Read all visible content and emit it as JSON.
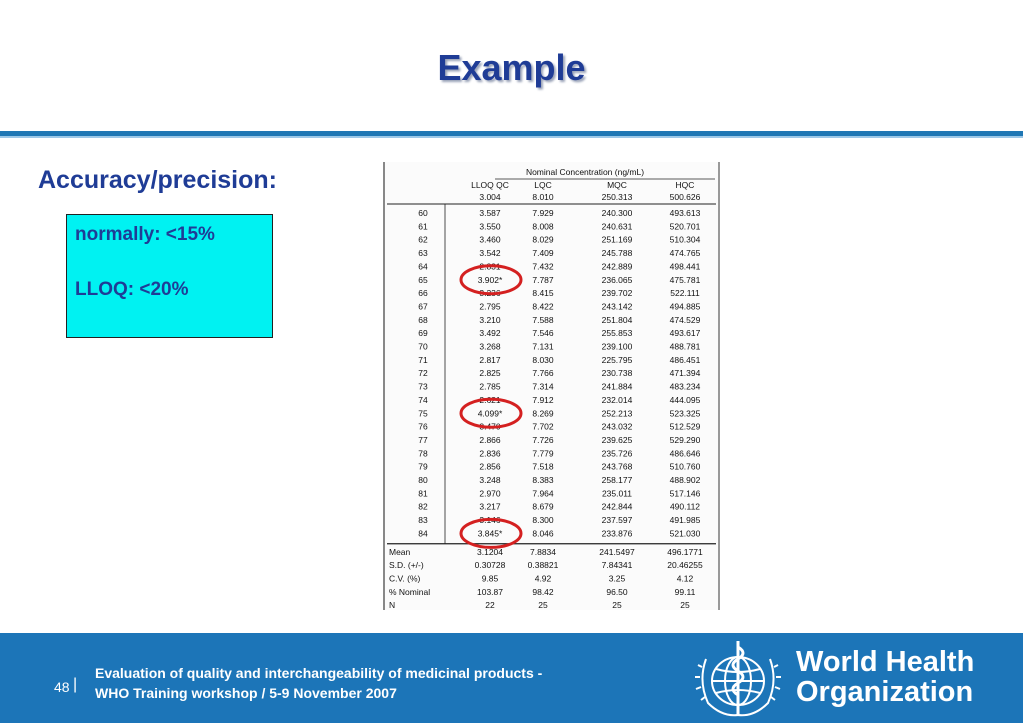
{
  "title": "Example",
  "subheading": "Accuracy/precision:",
  "note": {
    "line1": "normally: <15%",
    "line2": "LLOQ: <20%"
  },
  "table": {
    "header_top": "Nominal Concentration (ng/mL)",
    "columns": [
      "LLOQ QC",
      "LQC",
      "MQC",
      "HQC"
    ],
    "nominal": [
      "3.004",
      "8.010",
      "250.313",
      "500.626"
    ],
    "rows": [
      [
        "60",
        "3.587",
        "7.929",
        "240.300",
        "493.613"
      ],
      [
        "61",
        "3.550",
        "8.008",
        "240.631",
        "520.701"
      ],
      [
        "62",
        "3.460",
        "8.029",
        "251.169",
        "510.304"
      ],
      [
        "63",
        "3.542",
        "7.409",
        "245.788",
        "474.765"
      ],
      [
        "64",
        "2.831",
        "7.432",
        "242.889",
        "498.441"
      ],
      [
        "65",
        "3.902*",
        "7.787",
        "236.065",
        "475.781"
      ],
      [
        "66",
        "3.236",
        "8.415",
        "239.702",
        "522.111"
      ],
      [
        "67",
        "2.795",
        "8.422",
        "243.142",
        "494.885"
      ],
      [
        "68",
        "3.210",
        "7.588",
        "251.804",
        "474.529"
      ],
      [
        "69",
        "3.492",
        "7.546",
        "255.853",
        "493.617"
      ],
      [
        "70",
        "3.268",
        "7.131",
        "239.100",
        "488.781"
      ],
      [
        "71",
        "2.817",
        "8.030",
        "225.795",
        "486.451"
      ],
      [
        "72",
        "2.825",
        "7.766",
        "230.738",
        "471.394"
      ],
      [
        "73",
        "2.785",
        "7.314",
        "241.884",
        "483.234"
      ],
      [
        "74",
        "2.621",
        "7.912",
        "232.014",
        "444.095"
      ],
      [
        "75",
        "4.099*",
        "8.269",
        "252.213",
        "523.325"
      ],
      [
        "76",
        "3.470",
        "7.702",
        "243.032",
        "512.529"
      ],
      [
        "77",
        "2.866",
        "7.726",
        "239.625",
        "529.290"
      ],
      [
        "78",
        "2.836",
        "7.779",
        "235.726",
        "486.646"
      ],
      [
        "79",
        "2.856",
        "7.518",
        "243.768",
        "510.760"
      ],
      [
        "80",
        "3.248",
        "8.383",
        "258.177",
        "488.902"
      ],
      [
        "81",
        "2.970",
        "7.964",
        "235.011",
        "517.146"
      ],
      [
        "82",
        "3.217",
        "8.679",
        "242.844",
        "490.112"
      ],
      [
        "83",
        "3.146",
        "8.300",
        "237.597",
        "491.985"
      ],
      [
        "84",
        "3.845*",
        "8.046",
        "233.876",
        "521.030"
      ]
    ],
    "stats": [
      [
        "Mean",
        "3.1204",
        "7.8834",
        "241.5497",
        "496.1771"
      ],
      [
        "S.D. (+/-)",
        "0.30728",
        "0.38821",
        "7.84341",
        "20.46255"
      ],
      [
        "C.V. (%)",
        "9.85",
        "4.92",
        "3.25",
        "4.12"
      ],
      [
        "% Nominal",
        "103.87",
        "98.42",
        "96.50",
        "99.11"
      ],
      [
        "N",
        "22",
        "25",
        "25",
        "25"
      ]
    ],
    "circled_row_indices": [
      5,
      15,
      24
    ],
    "circled_label": "highlighted LLOQ outliers",
    "circle_color": "#d42020"
  },
  "footer": {
    "page_number": "48",
    "separator": "|",
    "line1": "Evaluation of quality and interchangeability of medicinal products -",
    "line2": "WHO Training workshop / 5-9 November 2007",
    "org_line1": "World Health",
    "org_line2": "Organization"
  },
  "colors": {
    "title": "#1f3c96",
    "accent_rule": "#1f77b4",
    "note_box": "#00f2f2",
    "footer_bg": "#1c75b8",
    "circle": "#d42020"
  }
}
